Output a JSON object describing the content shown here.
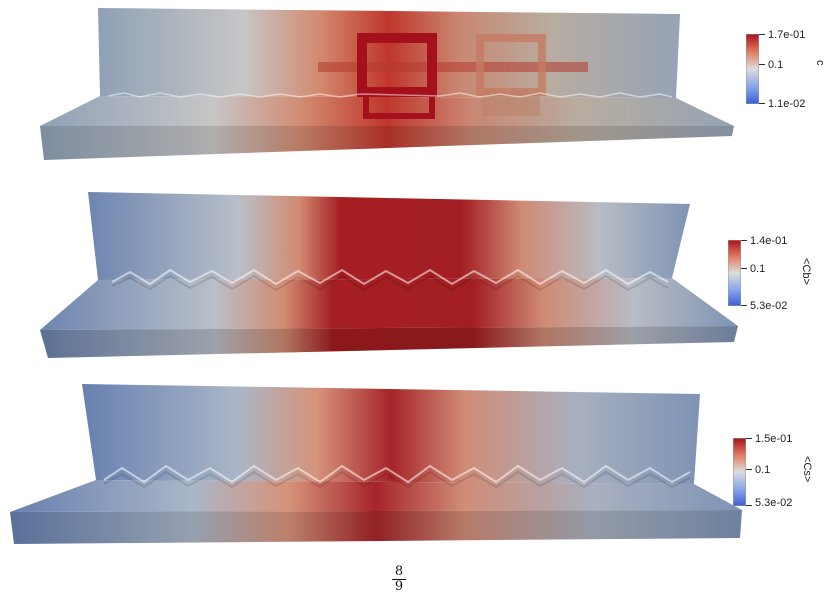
{
  "panels": [
    {
      "field": "c",
      "max_label": "1.7e-01",
      "mid_label": "0.1",
      "min_label": "1.1e-02",
      "colors": {
        "low": "#4a6fd8",
        "mid": "#dcdcdc",
        "high": "#a7111f"
      }
    },
    {
      "field": "<Cb>",
      "max_label": "1.4e-01",
      "mid_label": "0.1",
      "min_label": "5.3e-02",
      "colors": {
        "low": "#4a6fd8",
        "mid": "#dcdcdc",
        "high": "#a7111f"
      }
    },
    {
      "field": "<Cs>",
      "max_label": "1.5e-01",
      "mid_label": "0.1",
      "min_label": "5.3e-02",
      "colors": {
        "low": "#4a6fd8",
        "mid": "#dcdcdc",
        "high": "#a7111f"
      }
    }
  ],
  "footer": {
    "numerator": "8",
    "denominator": "9"
  }
}
